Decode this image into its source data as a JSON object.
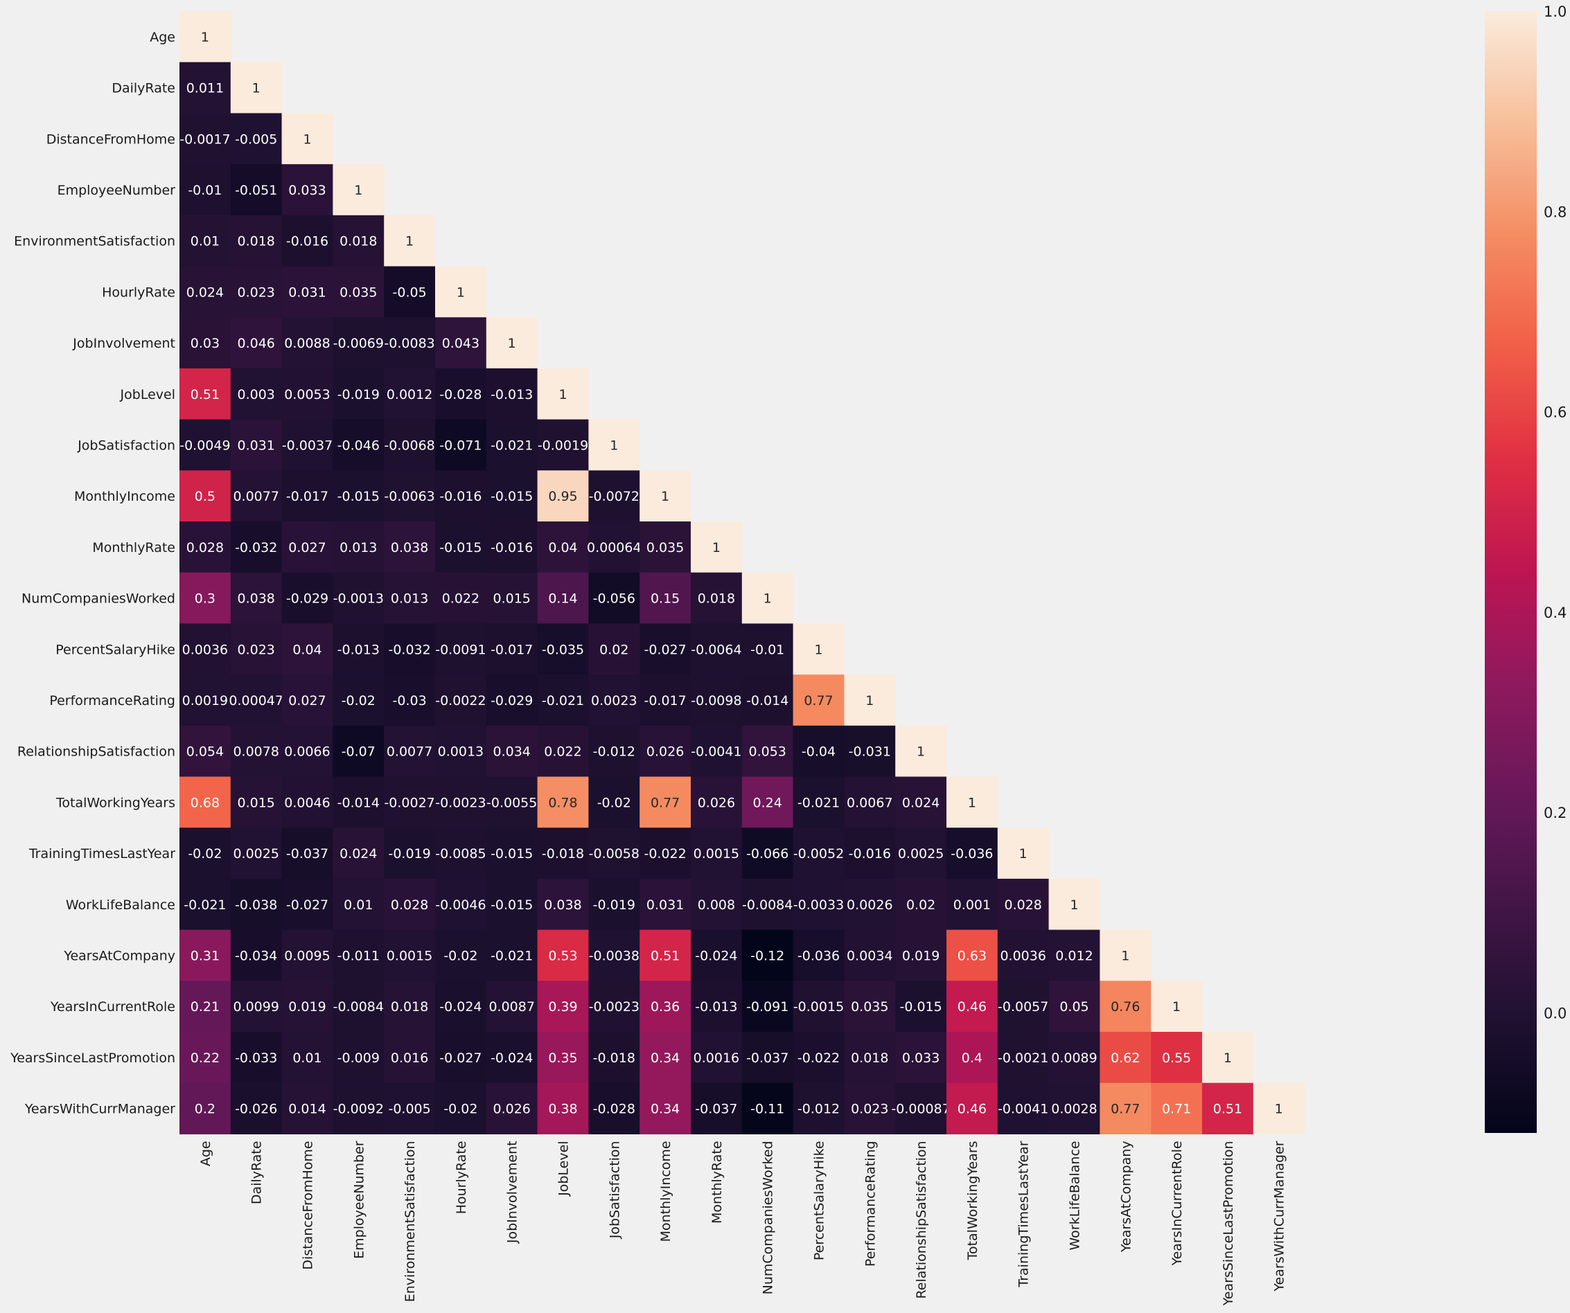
{
  "chart_data": {
    "type": "heatmap",
    "variables": [
      "Age",
      "DailyRate",
      "DistanceFromHome",
      "EmployeeNumber",
      "EnvironmentSatisfaction",
      "HourlyRate",
      "JobInvolvement",
      "JobLevel",
      "JobSatisfaction",
      "MonthlyIncome",
      "MonthlyRate",
      "NumCompaniesWorked",
      "PercentSalaryHike",
      "PerformanceRating",
      "RelationshipSatisfaction",
      "TotalWorkingYears",
      "TrainingTimesLastYear",
      "WorkLifeBalance",
      "YearsAtCompany",
      "YearsInCurrentRole",
      "YearsSinceLastPromotion",
      "YearsWithCurrManager"
    ],
    "mask": "upper-triangle",
    "colormap": "rocket",
    "vmin": -0.12,
    "vmax": 1.0,
    "colorbar_ticks": [
      "0.0",
      "0.2",
      "0.4",
      "0.6",
      "0.8",
      "1.0"
    ],
    "annotations": [
      [
        "1"
      ],
      [
        "0.011",
        "1"
      ],
      [
        "-0.0017",
        "-0.005",
        "1"
      ],
      [
        "-0.01",
        "-0.051",
        "0.033",
        "1"
      ],
      [
        "0.01",
        "0.018",
        "-0.016",
        "0.018",
        "1"
      ],
      [
        "0.024",
        "0.023",
        "0.031",
        "0.035",
        "-0.05",
        "1"
      ],
      [
        "0.03",
        "0.046",
        "0.0088",
        "-0.0069",
        "-0.0083",
        "0.043",
        "1"
      ],
      [
        "0.51",
        "0.003",
        "0.0053",
        "-0.019",
        "0.0012",
        "-0.028",
        "-0.013",
        "1"
      ],
      [
        "-0.0049",
        "0.031",
        "-0.0037",
        "-0.046",
        "-0.0068",
        "-0.071",
        "-0.021",
        "-0.0019",
        "1"
      ],
      [
        "0.5",
        "0.0077",
        "-0.017",
        "-0.015",
        "-0.0063",
        "-0.016",
        "-0.015",
        "0.95",
        "-0.0072",
        "1"
      ],
      [
        "0.028",
        "-0.032",
        "0.027",
        "0.013",
        "0.038",
        "-0.015",
        "-0.016",
        "0.04",
        "0.00064",
        "0.035",
        "1"
      ],
      [
        "0.3",
        "0.038",
        "-0.029",
        "-0.0013",
        "0.013",
        "0.022",
        "0.015",
        "0.14",
        "-0.056",
        "0.15",
        "0.018",
        "1"
      ],
      [
        "0.0036",
        "0.023",
        "0.04",
        "-0.013",
        "-0.032",
        "-0.0091",
        "-0.017",
        "-0.035",
        "0.02",
        "-0.027",
        "-0.0064",
        "-0.01",
        "1"
      ],
      [
        "0.0019",
        "0.00047",
        "0.027",
        "-0.02",
        "-0.03",
        "-0.0022",
        "-0.029",
        "-0.021",
        "0.0023",
        "-0.017",
        "-0.0098",
        "-0.014",
        "0.77",
        "1"
      ],
      [
        "0.054",
        "0.0078",
        "0.0066",
        "-0.07",
        "0.0077",
        "0.0013",
        "0.034",
        "0.022",
        "-0.012",
        "0.026",
        "-0.0041",
        "0.053",
        "-0.04",
        "-0.031",
        "1"
      ],
      [
        "0.68",
        "0.015",
        "0.0046",
        "-0.014",
        "-0.0027",
        "-0.0023",
        "-0.0055",
        "0.78",
        "-0.02",
        "0.77",
        "0.026",
        "0.24",
        "-0.021",
        "0.0067",
        "0.024",
        "1"
      ],
      [
        "-0.02",
        "0.0025",
        "-0.037",
        "0.024",
        "-0.019",
        "-0.0085",
        "-0.015",
        "-0.018",
        "-0.0058",
        "-0.022",
        "0.0015",
        "-0.066",
        "-0.0052",
        "-0.016",
        "0.0025",
        "-0.036",
        "1"
      ],
      [
        "-0.021",
        "-0.038",
        "-0.027",
        "0.01",
        "0.028",
        "-0.0046",
        "-0.015",
        "0.038",
        "-0.019",
        "0.031",
        "0.008",
        "-0.0084",
        "-0.0033",
        "0.0026",
        "0.02",
        "0.001",
        "0.028",
        "1"
      ],
      [
        "0.31",
        "-0.034",
        "0.0095",
        "-0.011",
        "0.0015",
        "-0.02",
        "-0.021",
        "0.53",
        "-0.0038",
        "0.51",
        "-0.024",
        "-0.12",
        "-0.036",
        "0.0034",
        "0.019",
        "0.63",
        "0.0036",
        "0.012",
        "1"
      ],
      [
        "0.21",
        "0.0099",
        "0.019",
        "-0.0084",
        "0.018",
        "-0.024",
        "0.0087",
        "0.39",
        "-0.0023",
        "0.36",
        "-0.013",
        "-0.091",
        "-0.0015",
        "0.035",
        "-0.015",
        "0.46",
        "-0.0057",
        "0.05",
        "0.76",
        "1"
      ],
      [
        "0.22",
        "-0.033",
        "0.01",
        "-0.009",
        "0.016",
        "-0.027",
        "-0.024",
        "0.35",
        "-0.018",
        "0.34",
        "0.0016",
        "-0.037",
        "-0.022",
        "0.018",
        "0.033",
        "0.4",
        "-0.0021",
        "0.0089",
        "0.62",
        "0.55",
        "1"
      ],
      [
        "0.2",
        "-0.026",
        "0.014",
        "-0.0092",
        "-0.005",
        "-0.02",
        "0.026",
        "0.38",
        "-0.028",
        "0.34",
        "-0.037",
        "-0.11",
        "-0.012",
        "0.023",
        "-0.00087",
        "0.46",
        "-0.0041",
        "0.0028",
        "0.77",
        "0.71",
        "0.51",
        "1"
      ]
    ]
  }
}
